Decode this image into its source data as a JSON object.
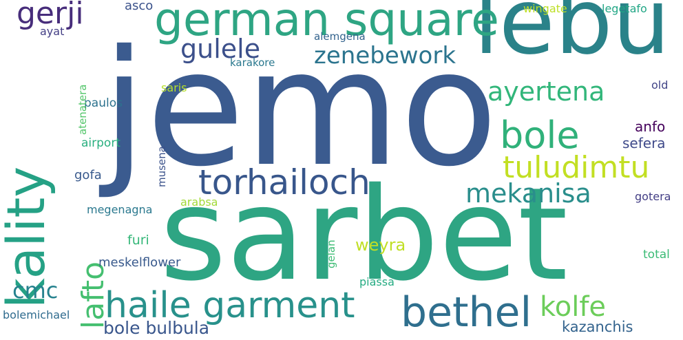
{
  "words": {
    "jemo": {
      "text": "jemo",
      "color": "#3b5b8f"
    },
    "sarbet": {
      "text": "sarbet",
      "color": "#2ea583"
    },
    "lebu": {
      "text": "lebu",
      "color": "#2a8289"
    },
    "kality": {
      "text": "kality",
      "color": "#25a185"
    },
    "german_square": {
      "text": "german square",
      "color": "#2ea583"
    },
    "bethel": {
      "text": "bethel",
      "color": "#2f6f8e"
    },
    "haile_garment": {
      "text": "haile garment",
      "color": "#28918b"
    },
    "torhailoch": {
      "text": "torhailoch",
      "color": "#38568b"
    },
    "bole": {
      "text": "bole",
      "color": "#30b17a"
    },
    "gerji": {
      "text": "gerji",
      "color": "#472d7b"
    },
    "lafto": {
      "text": "lafto",
      "color": "#45bf70"
    },
    "tuludimtu": {
      "text": "tuludimtu",
      "color": "#c2df23"
    },
    "kolfe": {
      "text": "kolfe",
      "color": "#6ccd5a"
    },
    "ayertena": {
      "text": "ayertena",
      "color": "#32b67a"
    },
    "gulele": {
      "text": "gulele",
      "color": "#3c508b"
    },
    "mekanisa": {
      "text": "mekanisa",
      "color": "#2a8e8c"
    },
    "zenebework": {
      "text": "zenebework",
      "color": "#2b748e"
    },
    "cmc": {
      "text": "cmc",
      "color": "#26828e"
    },
    "bole_bulbula": {
      "text": "bole bulbula",
      "color": "#39568c"
    },
    "weyra": {
      "text": "weyra",
      "color": "#c0df25"
    },
    "kazanchis": {
      "text": "kazanchis",
      "color": "#33638d"
    },
    "anfo": {
      "text": "anfo",
      "color": "#44015b"
    },
    "sefera": {
      "text": "sefera",
      "color": "#3f4a8a"
    },
    "asco": {
      "text": "asco",
      "color": "#3b528b"
    },
    "furi": {
      "text": "furi",
      "color": "#35b779"
    },
    "gofa": {
      "text": "gofa",
      "color": "#38598c"
    },
    "meskelflower": {
      "text": "meskelflower",
      "color": "#38598c"
    },
    "paulos": {
      "text": "paulos",
      "color": "#2c728e"
    },
    "airport": {
      "text": "airport",
      "color": "#29af7f"
    },
    "wingate": {
      "text": "wingate",
      "color": "#bddf26"
    },
    "legetafo": {
      "text": "legetafo",
      "color": "#21a685"
    },
    "ayat": {
      "text": "ayat",
      "color": "#433e85"
    },
    "alemgena": {
      "text": "alemgena",
      "color": "#33638d"
    },
    "karakore": {
      "text": "karakore",
      "color": "#2a788e"
    },
    "saris": {
      "text": "saris",
      "color": "#b5de2b"
    },
    "old": {
      "text": "old",
      "color": "#414487"
    },
    "megenagna": {
      "text": "megenagna",
      "color": "#2a788e"
    },
    "arabsa": {
      "text": "arabsa",
      "color": "#a2da37"
    },
    "gotera": {
      "text": "gotera",
      "color": "#433e85"
    },
    "total": {
      "text": "total",
      "color": "#3bbb75"
    },
    "piassa": {
      "text": "piassa",
      "color": "#25ab82"
    },
    "bolemichael": {
      "text": "bolemichael",
      "color": "#2f6b8e"
    },
    "atenatera": {
      "text": "atenatera",
      "color": "#52c569"
    },
    "musena": {
      "text": "musena",
      "color": "#3b528b"
    },
    "gelan": {
      "text": "gelan",
      "color": "#3dbc74"
    }
  }
}
